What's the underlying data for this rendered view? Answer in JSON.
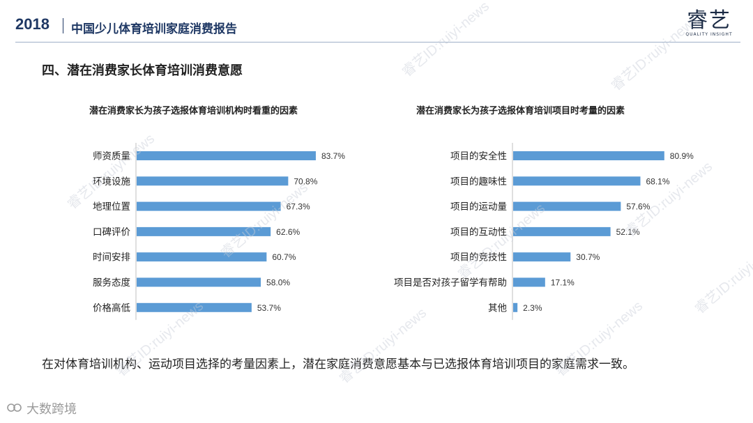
{
  "header": {
    "year": "2018",
    "report_title": "中国少儿体育培训家庭消费报告",
    "logo_text": "睿艺",
    "logo_sub": "QUALITY   INSIGHT"
  },
  "section_title": "四、潜在消费家长体育培训消费意愿",
  "chart_data": [
    {
      "type": "bar",
      "orientation": "horizontal",
      "title": "潜在消费家长为孩子选报体育培训机构时看重的因素",
      "categories": [
        "师资质量",
        "环境设施",
        "地理位置",
        "口碑评价",
        "时间安排",
        "服务态度",
        "价格高低"
      ],
      "values": [
        83.7,
        70.8,
        67.3,
        62.6,
        60.7,
        58.0,
        53.7
      ],
      "value_labels": [
        "83.7%",
        "70.8%",
        "67.3%",
        "62.6%",
        "60.7%",
        "58.0%",
        "53.7%"
      ],
      "color": "#5b9bd5",
      "xlim": [
        0,
        100
      ]
    },
    {
      "type": "bar",
      "orientation": "horizontal",
      "title": "潜在消费家长为孩子选报体育培训项目时考量的因素",
      "categories": [
        "项目的安全性",
        "项目的趣味性",
        "项目的运动量",
        "项目的互动性",
        "项目的竞技性",
        "项目是否对孩子留学有帮助",
        "其他"
      ],
      "values": [
        80.9,
        68.1,
        57.6,
        52.1,
        30.7,
        17.1,
        2.3
      ],
      "value_labels": [
        "80.9%",
        "68.1%",
        "57.6%",
        "52.1%",
        "30.7%",
        "17.1%",
        "2.3%"
      ],
      "color": "#5b9bd5",
      "xlim": [
        0,
        100
      ]
    }
  ],
  "conclusion": "在对体育培训机构、运动项目选择的考量因素上，潜在家庭消费意愿基本与已选报体育培训项目的家庭需求一致。",
  "footer": {
    "brand": "大数跨境"
  },
  "watermark": "睿艺ID:ruiyi-news"
}
